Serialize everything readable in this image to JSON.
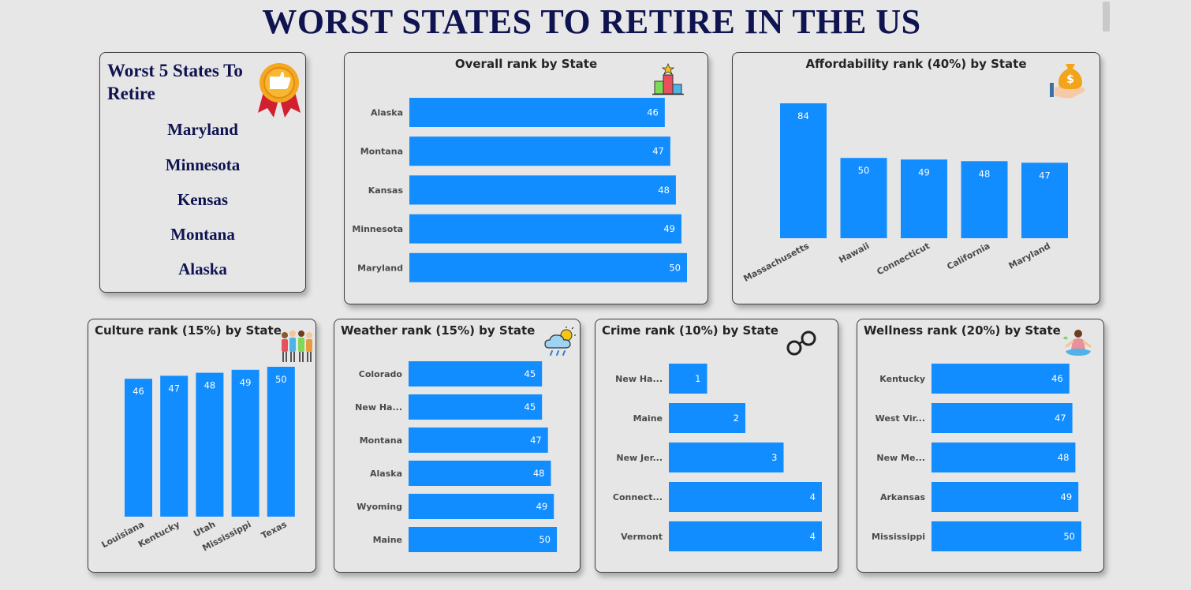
{
  "title": "WORST STATES TO RETIRE IN THE US",
  "colors": {
    "bar": "#118dff",
    "title": "#0f1451",
    "label": "#4a4a4a"
  },
  "worst_list": {
    "title": "Worst 5 States To Retire",
    "icon": "award-ribbon-thumbs-down-icon",
    "items": [
      "Maryland",
      "Minnesota",
      "Kensas",
      "Montana",
      "Alaska"
    ]
  },
  "chart_data": [
    {
      "id": "overall",
      "type": "bar",
      "orientation": "horizontal",
      "title": "Overall rank by State",
      "icon": "podium-icon",
      "categories": [
        "Alaska",
        "Montana",
        "Kansas",
        "Minnesota",
        "Maryland"
      ],
      "values": [
        46,
        47,
        48,
        49,
        50
      ],
      "xlim": [
        0,
        50
      ]
    },
    {
      "id": "affordability",
      "type": "bar",
      "orientation": "vertical",
      "title": "Affordability rank (40%) by State",
      "icon": "money-bag-hand-icon",
      "categories": [
        "Massachusetts",
        "Hawaii",
        "Connecticut",
        "California",
        "Maryland"
      ],
      "values": [
        84,
        50,
        49,
        48,
        47
      ],
      "ylim": [
        0,
        84
      ]
    },
    {
      "id": "culture",
      "type": "bar",
      "orientation": "vertical",
      "title": "Culture rank (15%) by State",
      "icon": "people-group-icon",
      "categories": [
        "Louisiana",
        "Kentucky",
        "Utah",
        "Mississippi",
        "Texas"
      ],
      "values": [
        46,
        47,
        48,
        49,
        50
      ],
      "ylim": [
        0,
        50
      ]
    },
    {
      "id": "weather",
      "type": "bar",
      "orientation": "horizontal",
      "title": "Weather rank (15%) by State",
      "icon": "weather-cloud-sun-rain-icon",
      "categories": [
        "Colorado",
        "New Ha...",
        "Montana",
        "Alaska",
        "Wyoming",
        "Maine"
      ],
      "values": [
        45,
        45,
        47,
        48,
        49,
        50
      ],
      "xlim": [
        0,
        50
      ]
    },
    {
      "id": "crime",
      "type": "bar",
      "orientation": "horizontal",
      "title": "Crime rank (10%) by State",
      "icon": "handcuffs-icon",
      "categories": [
        "New Ha...",
        "Maine",
        "New Jer...",
        "Connect...",
        "Vermont"
      ],
      "values": [
        1,
        2,
        3,
        4,
        4
      ],
      "xlim": [
        0,
        4
      ]
    },
    {
      "id": "wellness",
      "type": "bar",
      "orientation": "horizontal",
      "title": "Wellness rank (20%) by State",
      "icon": "meditation-icon",
      "categories": [
        "Kentucky",
        "West Vir...",
        "New Me...",
        "Arkansas",
        "Mississippi"
      ],
      "values": [
        46,
        47,
        48,
        49,
        50
      ],
      "xlim": [
        0,
        50
      ]
    }
  ]
}
